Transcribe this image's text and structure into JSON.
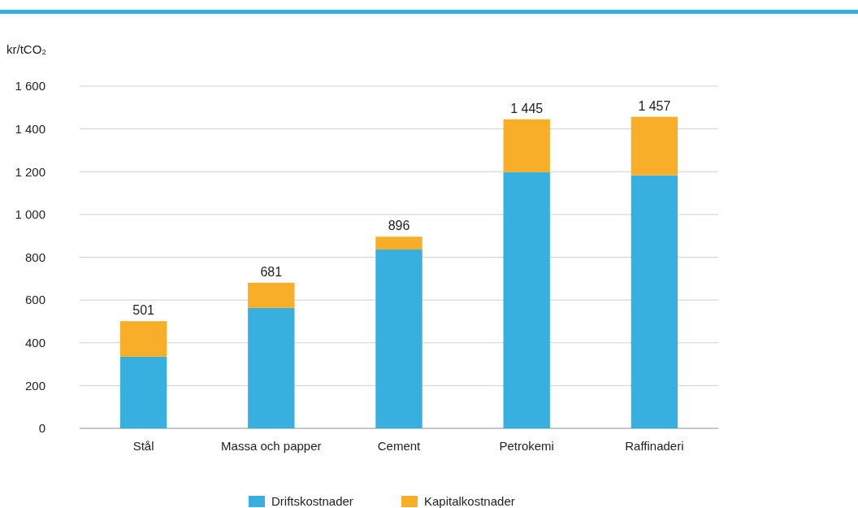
{
  "chart_data": {
    "type": "bar",
    "stacked": true,
    "ylabel": "kr/tCO₂",
    "categories": [
      "Stål",
      "Massa och papper",
      "Cement",
      "Petrokemi",
      "Raffinaderi"
    ],
    "series": [
      {
        "name": "Driftskostnader",
        "color": "#38b0df",
        "values": [
          335,
          563,
          836,
          1198,
          1183
        ]
      },
      {
        "name": "Kapitalkostnader",
        "color": "#f8ae28",
        "values": [
          166,
          118,
          60,
          247,
          274
        ]
      }
    ],
    "totals": [
      "501",
      "681",
      "896",
      "1 445",
      "1 457"
    ],
    "ylim": [
      0,
      1600
    ],
    "yticks": [
      0,
      200,
      400,
      600,
      800,
      {
        "value": 1000,
        "label": "1 000"
      },
      {
        "value": 1200,
        "label": "1 200"
      },
      {
        "value": 1400,
        "label": "1 400"
      },
      {
        "value": 1600,
        "label": "1 600"
      }
    ],
    "grid": "y",
    "legend": "bottom"
  }
}
